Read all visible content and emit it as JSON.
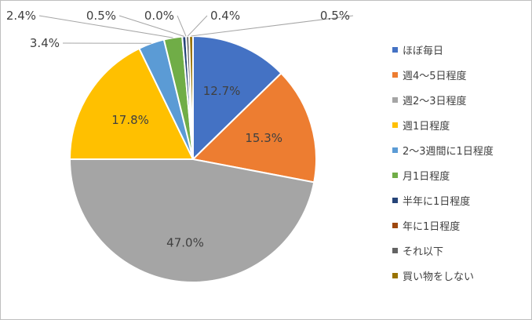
{
  "chart_data": {
    "type": "pie",
    "title": "",
    "categories": [
      "ほぼ毎日",
      "週4～5日程度",
      "週2～3日程度",
      "週1日程度",
      "2～3週間に1日程度",
      "月1日程度",
      "半年に1日程度",
      "年に1日程度",
      "それ以下",
      "買い物をしない"
    ],
    "values": [
      12.7,
      15.3,
      47.0,
      17.8,
      3.4,
      2.4,
      0.5,
      0.0,
      0.4,
      0.5
    ],
    "labels": [
      "12.7%",
      "15.3%",
      "47.0%",
      "17.8%",
      "3.4%",
      "2.4%",
      "0.5%",
      "0.0%",
      "0.4%",
      "0.5%"
    ],
    "colors": [
      "#4472c4",
      "#ed7d31",
      "#a5a5a5",
      "#ffc000",
      "#5b9bd5",
      "#70ad47",
      "#264478",
      "#9e480e",
      "#636363",
      "#997300"
    ],
    "legend_position": "right",
    "start_angle_deg": 0,
    "direction": "clockwise"
  }
}
